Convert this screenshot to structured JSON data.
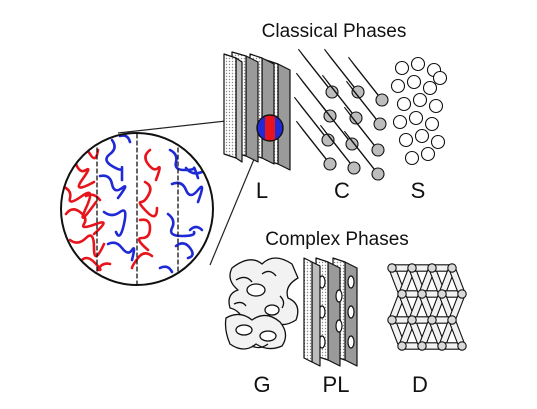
{
  "figure": {
    "classical_title": "Classical Phases",
    "complex_title": "Complex Phases",
    "classical_labels": [
      "L",
      "C",
      "S"
    ],
    "complex_labels": [
      "G",
      "PL",
      "D"
    ]
  },
  "colors": {
    "block_a": "#e8141c",
    "block_b": "#1f2ad6",
    "outline": "#111111",
    "fill_light": "#f2f2f2",
    "fill_mid": "#cfcfcf",
    "fill_dark": "#9a9a9a"
  }
}
